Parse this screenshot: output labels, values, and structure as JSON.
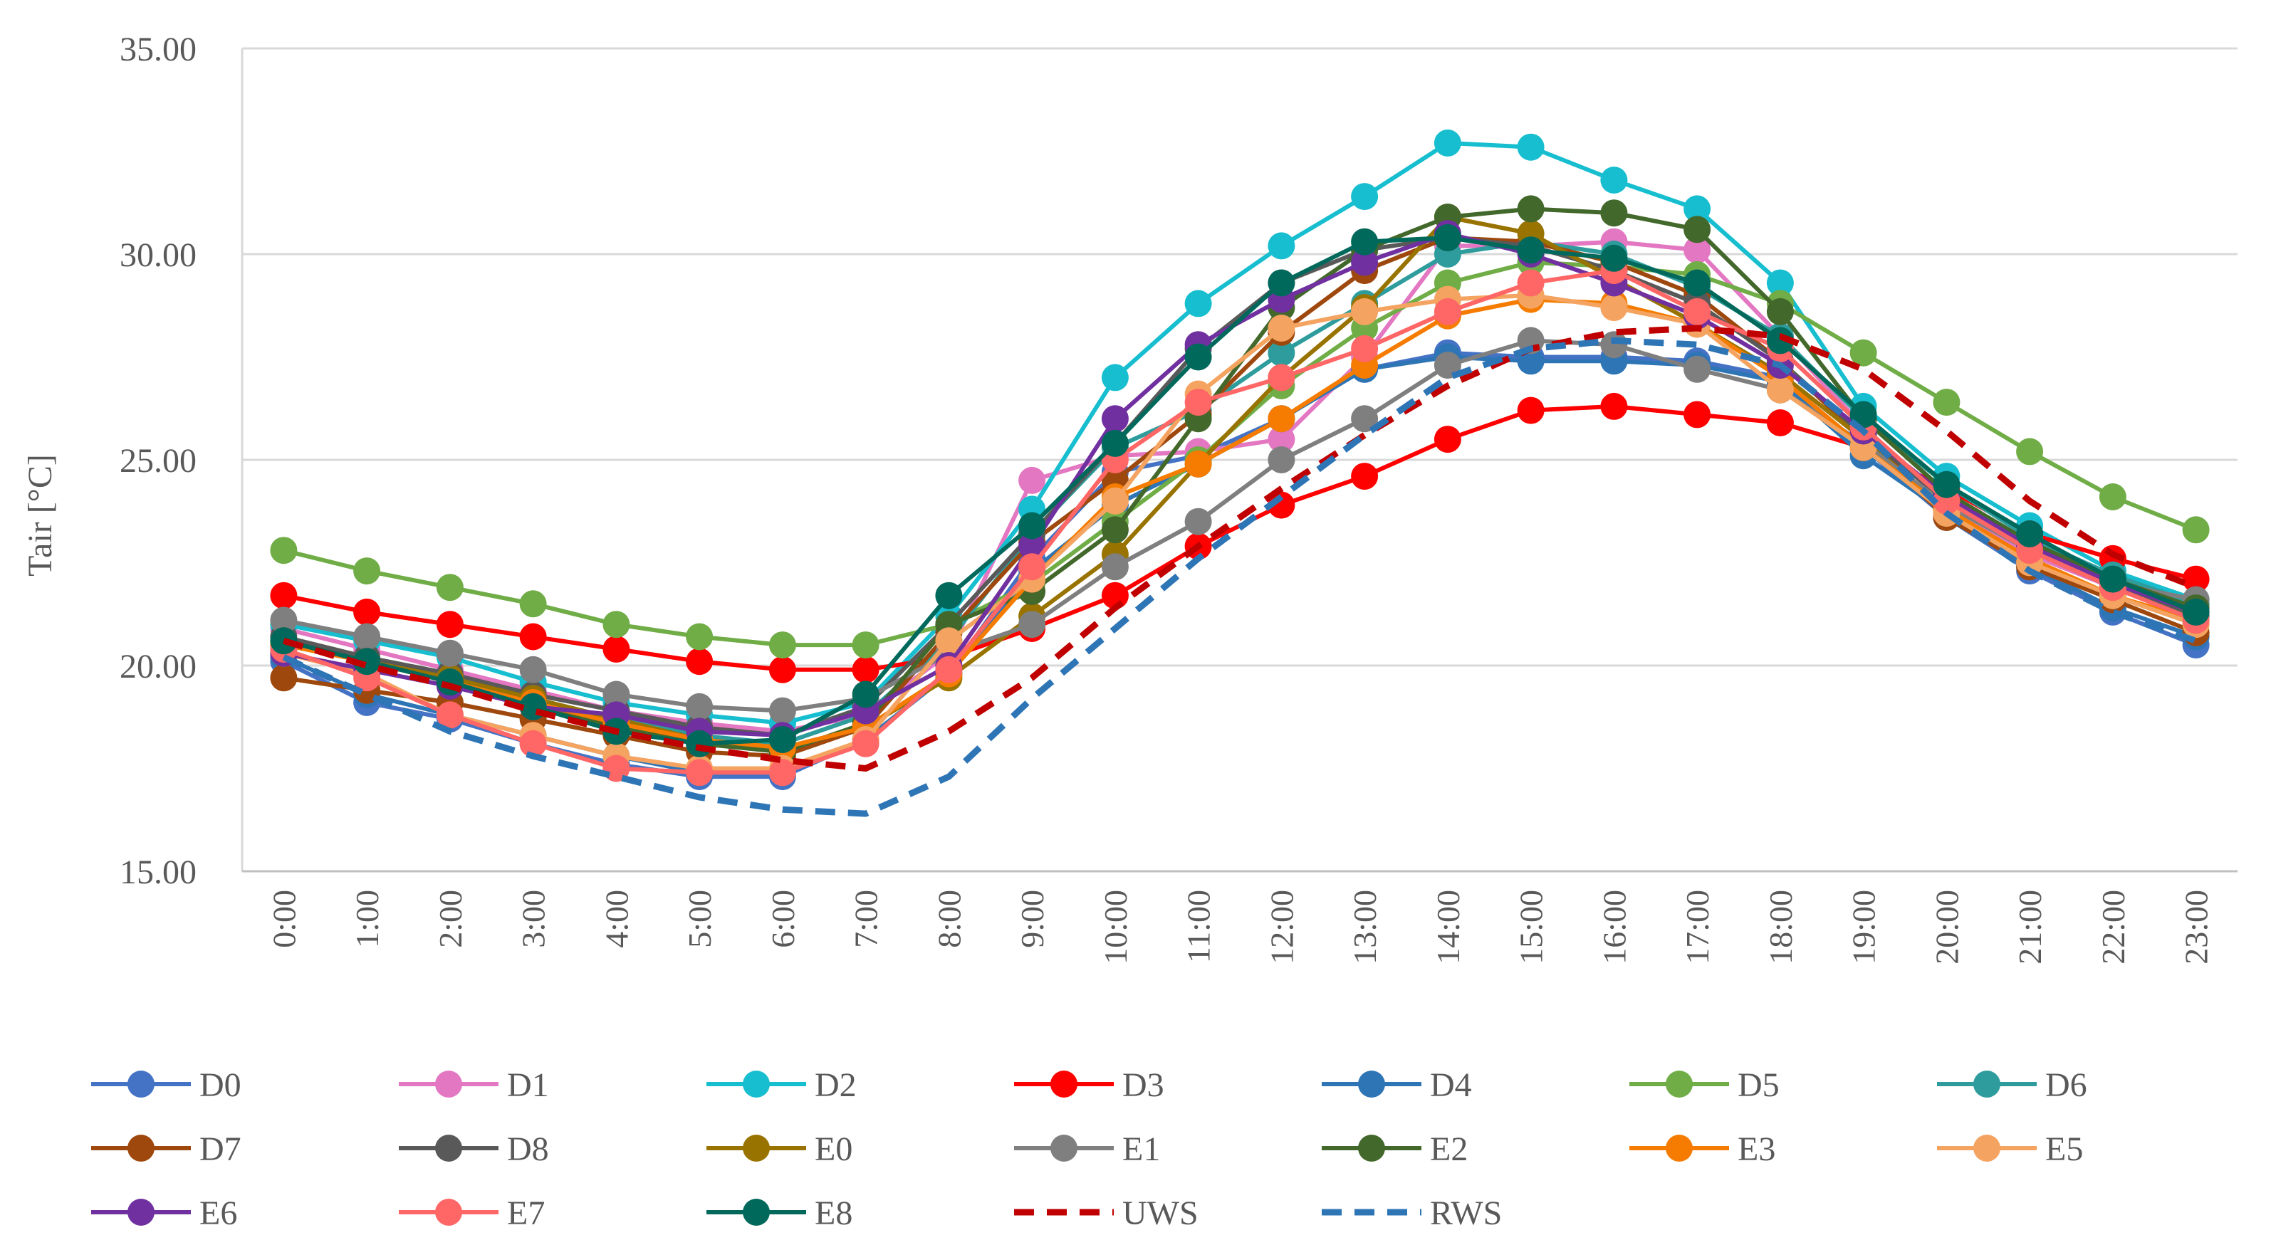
{
  "chart_data": {
    "type": "line",
    "title": "",
    "xlabel": "",
    "ylabel": "Tair [°C]",
    "ylim": [
      15,
      35
    ],
    "yticks": [
      "15.00",
      "20.00",
      "25.00",
      "30.00",
      "35.00"
    ],
    "grid": true,
    "legend_position": "bottom",
    "categories": [
      "0:00",
      "1:00",
      "2:00",
      "3:00",
      "4:00",
      "5:00",
      "6:00",
      "7:00",
      "8:00",
      "9:00",
      "10:00",
      "11:00",
      "12:00",
      "13:00",
      "14:00",
      "15:00",
      "16:00",
      "17:00",
      "18:00",
      "19:00",
      "20:00",
      "21:00",
      "22:00",
      "23:00"
    ],
    "series": [
      {
        "name": "D0",
        "color": "#4472C4",
        "dashed": false,
        "values": [
          20.1,
          19.1,
          18.7,
          18.1,
          17.6,
          17.3,
          17.3,
          18.2,
          19.8,
          22.6,
          24.7,
          25.1,
          26.0,
          27.2,
          27.6,
          27.5,
          27.5,
          27.4,
          27.0,
          25.3,
          23.6,
          22.3,
          21.3,
          20.5
        ]
      },
      {
        "name": "D1",
        "color": "#E377C2",
        "dashed": false,
        "values": [
          20.9,
          20.4,
          19.9,
          19.4,
          18.9,
          18.6,
          18.4,
          18.8,
          20.3,
          24.5,
          25.1,
          25.2,
          25.5,
          27.5,
          30.2,
          30.2,
          30.3,
          30.1,
          28.0,
          25.8,
          23.9,
          22.7,
          21.9,
          21.3
        ]
      },
      {
        "name": "D2",
        "color": "#17BECF",
        "dashed": false,
        "values": [
          21.0,
          20.6,
          20.2,
          19.6,
          19.1,
          18.8,
          18.6,
          19.1,
          21.2,
          23.8,
          27.0,
          28.8,
          30.2,
          31.4,
          32.7,
          32.6,
          31.8,
          31.1,
          29.3,
          26.3,
          24.6,
          23.4,
          22.3,
          21.6
        ]
      },
      {
        "name": "D3",
        "color": "#FF0000",
        "dashed": false,
        "values": [
          21.7,
          21.3,
          21.0,
          20.7,
          20.4,
          20.1,
          19.9,
          19.9,
          20.2,
          20.9,
          21.7,
          22.9,
          23.9,
          24.6,
          25.5,
          26.2,
          26.3,
          26.1,
          25.9,
          25.3,
          24.3,
          23.2,
          22.6,
          22.1
        ]
      },
      {
        "name": "D4",
        "color": "#2E75B6",
        "dashed": false,
        "values": [
          20.2,
          19.3,
          18.8,
          18.3,
          17.8,
          17.4,
          17.4,
          18.2,
          19.8,
          22.3,
          23.9,
          24.9,
          26.0,
          27.2,
          27.5,
          27.4,
          27.4,
          27.3,
          26.9,
          25.1,
          23.7,
          22.4,
          21.4,
          20.7
        ]
      },
      {
        "name": "D5",
        "color": "#70AD47",
        "dashed": false,
        "values": [
          22.8,
          22.3,
          21.9,
          21.5,
          21.0,
          20.7,
          20.5,
          20.5,
          21.0,
          22.0,
          23.5,
          25.0,
          26.8,
          28.2,
          29.3,
          29.8,
          29.7,
          29.5,
          28.8,
          27.6,
          26.4,
          25.2,
          24.1,
          23.3
        ]
      },
      {
        "name": "D6",
        "color": "#2E9C9C",
        "dashed": false,
        "values": [
          20.6,
          20.1,
          19.7,
          19.2,
          18.7,
          18.3,
          18.1,
          18.8,
          20.6,
          23.2,
          25.3,
          26.2,
          27.6,
          28.8,
          30.0,
          30.3,
          30.0,
          29.2,
          28.0,
          26.0,
          24.4,
          23.1,
          22.2,
          21.5
        ]
      },
      {
        "name": "D7",
        "color": "#9E480E",
        "dashed": false,
        "values": [
          19.7,
          19.4,
          19.1,
          18.7,
          18.3,
          17.9,
          17.8,
          18.5,
          20.8,
          23.0,
          24.5,
          26.1,
          28.1,
          29.6,
          30.4,
          30.3,
          29.8,
          29.0,
          27.4,
          25.5,
          23.6,
          22.4,
          21.6,
          20.8
        ]
      },
      {
        "name": "D8",
        "color": "#595959",
        "dashed": false,
        "values": [
          20.7,
          20.2,
          19.8,
          19.3,
          18.9,
          18.5,
          18.3,
          19.0,
          21.0,
          23.2,
          25.4,
          27.7,
          29.3,
          30.1,
          30.4,
          30.2,
          29.6,
          28.8,
          27.4,
          25.6,
          24.0,
          22.8,
          21.9,
          21.2
        ]
      },
      {
        "name": "E0",
        "color": "#997300",
        "dashed": false,
        "values": [
          20.5,
          20.1,
          19.7,
          19.2,
          18.7,
          18.2,
          18.0,
          18.5,
          19.7,
          21.2,
          22.7,
          24.9,
          27.0,
          28.7,
          30.9,
          30.5,
          29.4,
          28.3,
          27.1,
          25.5,
          23.8,
          22.6,
          21.7,
          21.0
        ]
      },
      {
        "name": "E1",
        "color": "#7F7F7F",
        "dashed": false,
        "values": [
          21.1,
          20.7,
          20.3,
          19.9,
          19.3,
          19.0,
          18.9,
          19.2,
          20.3,
          21.0,
          22.4,
          23.5,
          25.0,
          26.0,
          27.3,
          27.9,
          27.8,
          27.2,
          26.7,
          25.4,
          23.9,
          22.8,
          22.0,
          21.6
        ]
      },
      {
        "name": "E2",
        "color": "#43682B",
        "dashed": false,
        "values": [
          20.6,
          20.1,
          19.6,
          19.0,
          18.5,
          18.1,
          17.9,
          18.6,
          21.0,
          21.8,
          23.3,
          26.0,
          28.7,
          30.1,
          30.9,
          31.1,
          31.0,
          30.6,
          28.6,
          26.0,
          24.2,
          23.0,
          22.1,
          21.4
        ]
      },
      {
        "name": "E3",
        "color": "#F57C00",
        "dashed": false,
        "values": [
          20.5,
          20.1,
          19.6,
          19.1,
          18.6,
          18.2,
          18.0,
          18.5,
          19.8,
          22.1,
          24.1,
          24.9,
          26.0,
          27.3,
          28.5,
          28.9,
          28.8,
          28.3,
          27.0,
          25.3,
          23.8,
          22.6,
          21.7,
          21.1
        ]
      },
      {
        "name": "E5",
        "color": "#F4A460",
        "dashed": false,
        "values": [
          20.3,
          19.8,
          18.8,
          18.3,
          17.8,
          17.5,
          17.5,
          18.2,
          20.6,
          22.1,
          24.0,
          26.6,
          28.2,
          28.6,
          28.9,
          29.0,
          28.7,
          28.3,
          26.7,
          25.3,
          23.7,
          22.5,
          21.7,
          21.0
        ]
      },
      {
        "name": "E6",
        "color": "#7030A0",
        "dashed": false,
        "values": [
          20.3,
          19.9,
          19.5,
          19.0,
          18.8,
          18.4,
          18.3,
          18.9,
          20.0,
          22.9,
          26.0,
          27.8,
          28.9,
          29.8,
          30.5,
          30.0,
          29.3,
          28.5,
          27.3,
          25.7,
          24.1,
          22.9,
          22.0,
          21.3
        ]
      },
      {
        "name": "E7",
        "color": "#FF6666",
        "dashed": false,
        "values": [
          20.4,
          19.7,
          18.8,
          18.1,
          17.5,
          17.4,
          17.4,
          18.1,
          19.9,
          22.4,
          25.0,
          26.4,
          27.0,
          27.7,
          28.6,
          29.3,
          29.6,
          28.6,
          27.7,
          25.8,
          24.0,
          22.8,
          21.9,
          21.1
        ]
      },
      {
        "name": "E8",
        "color": "#00695C",
        "dashed": false,
        "values": [
          20.6,
          20.1,
          19.6,
          19.0,
          18.4,
          18.1,
          18.2,
          19.3,
          21.7,
          23.4,
          25.4,
          27.5,
          29.3,
          30.3,
          30.4,
          30.1,
          29.9,
          29.3,
          27.9,
          26.1,
          24.4,
          23.2,
          22.1,
          21.3
        ]
      },
      {
        "name": "UWS",
        "color": "#C00000",
        "dashed": true,
        "values": [
          20.6,
          20.0,
          19.5,
          18.9,
          18.4,
          18.0,
          17.7,
          17.5,
          18.4,
          19.7,
          21.4,
          22.9,
          24.3,
          25.6,
          26.8,
          27.7,
          28.1,
          28.2,
          28.0,
          27.2,
          25.7,
          24.0,
          22.7,
          21.9
        ]
      },
      {
        "name": "RWS",
        "color": "#2E75B6",
        "dashed": true,
        "values": [
          20.2,
          19.3,
          18.4,
          17.8,
          17.3,
          16.8,
          16.5,
          16.4,
          17.3,
          19.2,
          20.9,
          22.6,
          24.1,
          25.6,
          27.0,
          27.7,
          27.9,
          27.8,
          27.3,
          25.7,
          23.7,
          22.3,
          21.3,
          20.6
        ]
      }
    ]
  }
}
